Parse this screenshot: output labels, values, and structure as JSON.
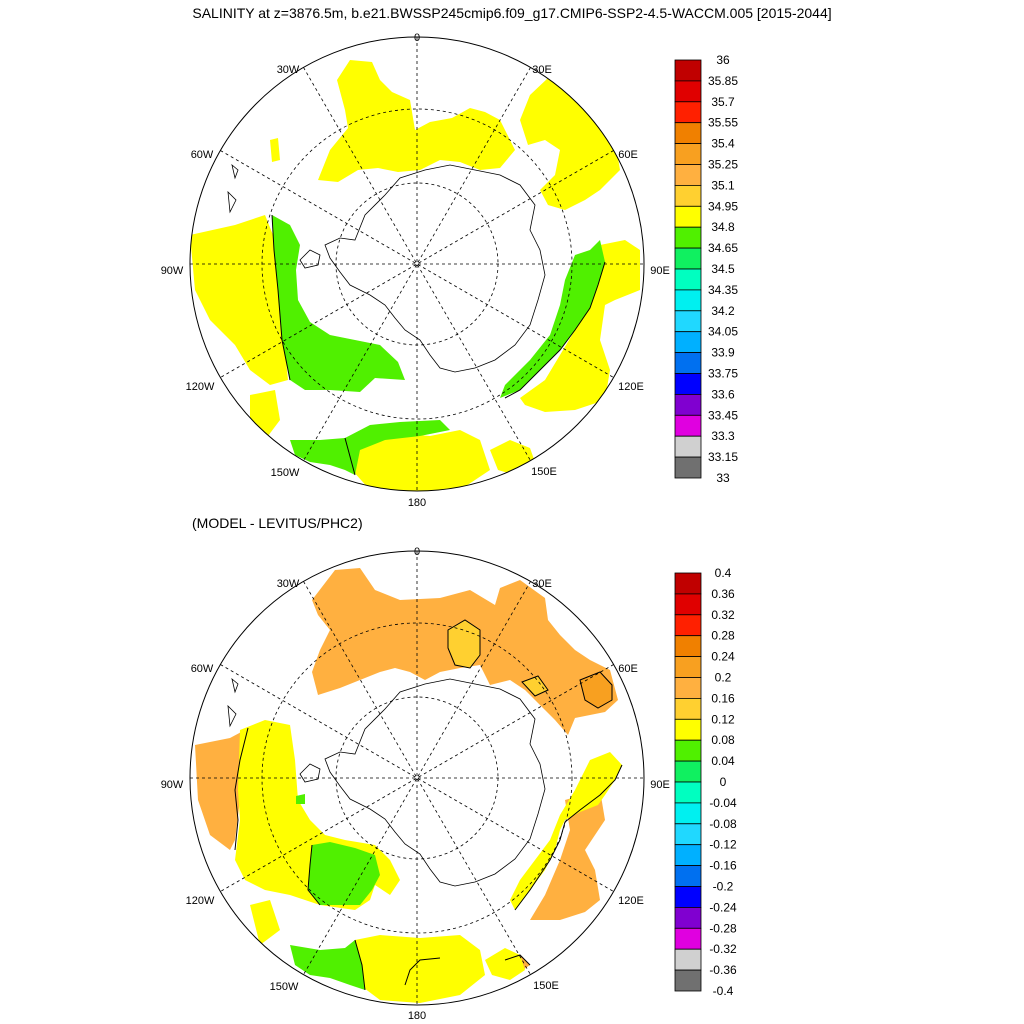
{
  "title": "SALINITY at z=3876.5m, b.e21.BWSSP245cmip6.f09_g17.CMIP6-SSP2-4.5-WACCM.005 [2015-2044]",
  "diff_title": "(MODEL - LEVITUS/PHC2)",
  "lon_labels": {
    "n": "0",
    "ne": "30E",
    "ene": "60E",
    "e": "90E",
    "ese": "120E",
    "sse": "150E",
    "s": "180",
    "ssw": "150W",
    "wsw": "120W",
    "w": "90W",
    "wnw": "60W",
    "nnw": "30W"
  },
  "colorbar_top": {
    "labels": [
      "36",
      "35.85",
      "35.7",
      "35.55",
      "35.4",
      "35.25",
      "35.1",
      "34.95",
      "34.8",
      "34.65",
      "34.5",
      "34.35",
      "34.2",
      "34.05",
      "33.9",
      "33.75",
      "33.6",
      "33.45",
      "33.3",
      "33.15",
      "33"
    ],
    "colors": [
      "#c00000",
      "#e00000",
      "#ff2000",
      "#f08000",
      "#f8a020",
      "#ffb040",
      "#ffd030",
      "#ffff00",
      "#50f000",
      "#10f060",
      "#00ffc0",
      "#00f0f0",
      "#20d8ff",
      "#00b0ff",
      "#0070f0",
      "#0000ff",
      "#8000d0",
      "#e000e0",
      "#d0d0d0",
      "#707070"
    ]
  },
  "colorbar_bottom": {
    "labels": [
      "0.4",
      "0.36",
      "0.32",
      "0.28",
      "0.24",
      "0.2",
      "0.16",
      "0.12",
      "0.08",
      "0.04",
      "0",
      "-0.04",
      "-0.08",
      "-0.12",
      "-0.16",
      "-0.2",
      "-0.24",
      "-0.28",
      "-0.32",
      "-0.36",
      "-0.4"
    ],
    "colors": [
      "#c00000",
      "#e00000",
      "#ff2000",
      "#f08000",
      "#f8a020",
      "#ffb040",
      "#ffd030",
      "#ffff00",
      "#50f000",
      "#10f060",
      "#00ffc0",
      "#00f0f0",
      "#20d8ff",
      "#00b0ff",
      "#0070f0",
      "#0000ff",
      "#8000d0",
      "#e000e0",
      "#d0d0d0",
      "#707070"
    ]
  }
}
